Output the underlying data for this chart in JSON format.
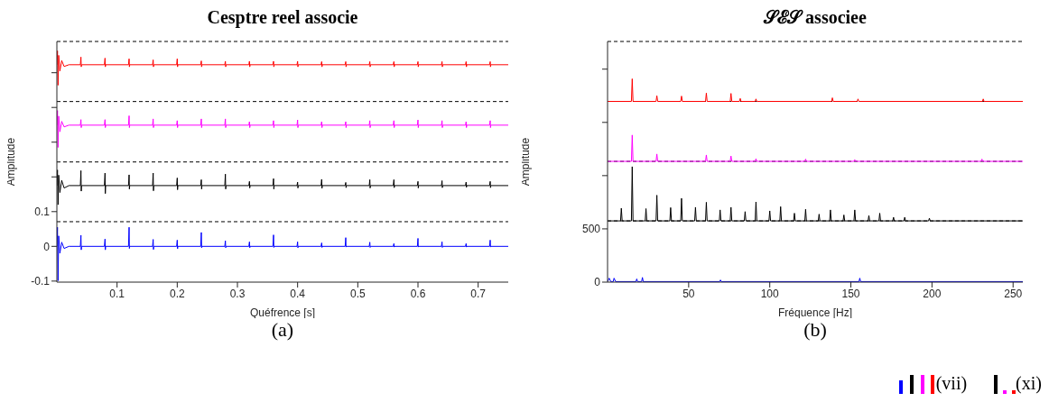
{
  "chart_data": [
    {
      "type": "line",
      "title": "Cesptre reel associe",
      "xlabel": "Quéfrence [s]",
      "ylabel": "Amplitude",
      "annotations": [
        "(a)"
      ],
      "xlim": [
        0,
        0.75
      ],
      "xticks": [
        0.1,
        0.2,
        0.3,
        0.4,
        0.5,
        0.6,
        0.7
      ],
      "ylim": [
        -0.103,
        0.59
      ],
      "yticks": [
        -0.1,
        0,
        0.1,
        {
          "value": 0.2,
          "label": null
        },
        {
          "value": 0.3,
          "label": null
        },
        {
          "value": 0.4,
          "label": null
        },
        {
          "value": 0.5,
          "label": null
        }
      ],
      "ref_lines": [
        {
          "axis": "y",
          "value": 0.071,
          "color": "#000000",
          "line_style": "dashed"
        },
        {
          "axis": "y",
          "value": 0.243,
          "color": "#000000",
          "line_style": "dashed"
        },
        {
          "axis": "y",
          "value": 0.417,
          "color": "#000000",
          "line_style": "dashed"
        },
        {
          "axis": "y",
          "value": 0.59,
          "color": "#000000",
          "line_style": "dashed"
        }
      ],
      "series": [
        {
          "color": "#ff0000",
          "x": [
            0,
            0.001,
            0.002,
            0.003,
            0.005,
            0.008,
            0.012,
            0.02,
            0.039,
            0.04,
            0.0405,
            0.041,
            0.079,
            0.08,
            0.0805,
            0.081,
            0.119,
            0.12,
            0.1205,
            0.121,
            0.159,
            0.16,
            0.1605,
            0.161,
            0.199,
            0.2,
            0.2005,
            0.201,
            0.239,
            0.24,
            0.2405,
            0.241,
            0.279,
            0.28,
            0.2805,
            0.281,
            0.319,
            0.32,
            0.3205,
            0.321,
            0.359,
            0.36,
            0.3605,
            0.361,
            0.399,
            0.4,
            0.4005,
            0.401,
            0.439,
            0.44,
            0.4405,
            0.441,
            0.479,
            0.48,
            0.4805,
            0.481,
            0.519,
            0.52,
            0.5205,
            0.521,
            0.559,
            0.56,
            0.5605,
            0.561,
            0.599,
            0.6,
            0.6005,
            0.601,
            0.639,
            0.64,
            0.6405,
            0.641,
            0.679,
            0.68,
            0.6805,
            0.681,
            0.719,
            0.72,
            0.7205,
            0.721,
            0.75
          ],
          "values": [
            0.523,
            0.563,
            0.464,
            0.55,
            0.505,
            0.535,
            0.518,
            0.523,
            0.523,
            0.545,
            0.517,
            0.523,
            0.523,
            0.542,
            0.517,
            0.523,
            0.523,
            0.54,
            0.517,
            0.523,
            0.523,
            0.537,
            0.517,
            0.523,
            0.523,
            0.54,
            0.517,
            0.523,
            0.523,
            0.534,
            0.517,
            0.523,
            0.523,
            0.533,
            0.517,
            0.523,
            0.523,
            0.533,
            0.517,
            0.523,
            0.523,
            0.533,
            0.517,
            0.523,
            0.523,
            0.533,
            0.517,
            0.523,
            0.523,
            0.532,
            0.517,
            0.523,
            0.523,
            0.532,
            0.517,
            0.523,
            0.523,
            0.532,
            0.517,
            0.523,
            0.523,
            0.532,
            0.517,
            0.523,
            0.523,
            0.532,
            0.517,
            0.523,
            0.523,
            0.532,
            0.517,
            0.523,
            0.523,
            0.532,
            0.517,
            0.523,
            0.523,
            0.532,
            0.517,
            0.523,
            0.523
          ]
        },
        {
          "color": "#ff00ff",
          "x": [
            0,
            0.001,
            0.002,
            0.003,
            0.005,
            0.008,
            0.012,
            0.02,
            0.039,
            0.04,
            0.0405,
            0.041,
            0.079,
            0.08,
            0.0805,
            0.081,
            0.119,
            0.12,
            0.1205,
            0.121,
            0.159,
            0.16,
            0.1605,
            0.161,
            0.199,
            0.2,
            0.2005,
            0.201,
            0.239,
            0.24,
            0.2405,
            0.241,
            0.279,
            0.28,
            0.2805,
            0.281,
            0.319,
            0.32,
            0.3205,
            0.321,
            0.359,
            0.36,
            0.3605,
            0.361,
            0.399,
            0.4,
            0.4005,
            0.401,
            0.439,
            0.44,
            0.4405,
            0.441,
            0.479,
            0.48,
            0.4805,
            0.481,
            0.519,
            0.52,
            0.5205,
            0.521,
            0.559,
            0.56,
            0.5605,
            0.561,
            0.599,
            0.6,
            0.6005,
            0.601,
            0.639,
            0.64,
            0.6405,
            0.641,
            0.679,
            0.68,
            0.6805,
            0.681,
            0.719,
            0.72,
            0.7205,
            0.721,
            0.75
          ],
          "values": [
            0.349,
            0.391,
            0.285,
            0.375,
            0.33,
            0.36,
            0.344,
            0.349,
            0.349,
            0.365,
            0.342,
            0.349,
            0.349,
            0.365,
            0.342,
            0.349,
            0.349,
            0.376,
            0.342,
            0.349,
            0.349,
            0.367,
            0.342,
            0.349,
            0.349,
            0.362,
            0.342,
            0.349,
            0.349,
            0.367,
            0.342,
            0.349,
            0.349,
            0.367,
            0.342,
            0.349,
            0.349,
            0.359,
            0.342,
            0.349,
            0.349,
            0.362,
            0.342,
            0.349,
            0.349,
            0.364,
            0.342,
            0.349,
            0.349,
            0.359,
            0.342,
            0.349,
            0.349,
            0.359,
            0.342,
            0.349,
            0.349,
            0.362,
            0.342,
            0.349,
            0.349,
            0.362,
            0.342,
            0.349,
            0.349,
            0.364,
            0.342,
            0.349,
            0.349,
            0.362,
            0.342,
            0.349,
            0.349,
            0.359,
            0.342,
            0.349,
            0.349,
            0.362,
            0.342,
            0.349,
            0.349
          ]
        },
        {
          "color": "#000000",
          "x": [
            0,
            0.001,
            0.002,
            0.003,
            0.005,
            0.008,
            0.012,
            0.02,
            0.039,
            0.04,
            0.0405,
            0.041,
            0.079,
            0.08,
            0.0805,
            0.081,
            0.119,
            0.12,
            0.1205,
            0.121,
            0.159,
            0.16,
            0.1605,
            0.161,
            0.199,
            0.2,
            0.2005,
            0.201,
            0.239,
            0.24,
            0.2405,
            0.241,
            0.279,
            0.28,
            0.2805,
            0.281,
            0.319,
            0.32,
            0.3205,
            0.321,
            0.359,
            0.36,
            0.3605,
            0.361,
            0.399,
            0.4,
            0.4005,
            0.401,
            0.439,
            0.44,
            0.4405,
            0.441,
            0.479,
            0.48,
            0.4805,
            0.481,
            0.519,
            0.52,
            0.5205,
            0.521,
            0.559,
            0.56,
            0.5605,
            0.561,
            0.599,
            0.6,
            0.6005,
            0.601,
            0.639,
            0.64,
            0.6405,
            0.641,
            0.679,
            0.68,
            0.6805,
            0.681,
            0.719,
            0.72,
            0.7205,
            0.721,
            0.75
          ],
          "values": [
            0.175,
            0.22,
            0.12,
            0.205,
            0.155,
            0.19,
            0.168,
            0.175,
            0.175,
            0.218,
            0.159,
            0.175,
            0.175,
            0.211,
            0.152,
            0.175,
            0.175,
            0.206,
            0.165,
            0.175,
            0.175,
            0.211,
            0.16,
            0.175,
            0.175,
            0.197,
            0.163,
            0.175,
            0.175,
            0.192,
            0.165,
            0.175,
            0.175,
            0.208,
            0.165,
            0.175,
            0.175,
            0.187,
            0.168,
            0.175,
            0.175,
            0.195,
            0.165,
            0.175,
            0.175,
            0.185,
            0.168,
            0.175,
            0.175,
            0.193,
            0.167,
            0.175,
            0.175,
            0.184,
            0.169,
            0.175,
            0.175,
            0.192,
            0.168,
            0.175,
            0.175,
            0.192,
            0.169,
            0.175,
            0.175,
            0.187,
            0.168,
            0.175,
            0.175,
            0.189,
            0.169,
            0.175,
            0.175,
            0.185,
            0.17,
            0.175,
            0.175,
            0.187,
            0.169,
            0.175,
            0.175
          ]
        },
        {
          "color": "#0000ff",
          "x": [
            0,
            0.001,
            0.002,
            0.003,
            0.005,
            0.008,
            0.012,
            0.02,
            0.039,
            0.04,
            0.0405,
            0.041,
            0.079,
            0.08,
            0.0805,
            0.081,
            0.119,
            0.12,
            0.1205,
            0.121,
            0.159,
            0.16,
            0.1605,
            0.161,
            0.199,
            0.2,
            0.2005,
            0.201,
            0.239,
            0.24,
            0.2405,
            0.241,
            0.279,
            0.28,
            0.2805,
            0.281,
            0.319,
            0.32,
            0.3205,
            0.321,
            0.359,
            0.36,
            0.3605,
            0.361,
            0.399,
            0.4,
            0.4005,
            0.401,
            0.439,
            0.44,
            0.4405,
            0.441,
            0.479,
            0.48,
            0.4805,
            0.481,
            0.519,
            0.52,
            0.5205,
            0.521,
            0.559,
            0.56,
            0.5605,
            0.561,
            0.599,
            0.6,
            0.6005,
            0.601,
            0.639,
            0.64,
            0.6405,
            0.641,
            0.679,
            0.68,
            0.6805,
            0.681,
            0.719,
            0.72,
            0.7205,
            0.721,
            0.75
          ],
          "values": [
            0,
            0.055,
            -0.099,
            0.03,
            -0.02,
            0.012,
            -0.006,
            0,
            0,
            0.032,
            -0.01,
            0,
            0,
            0.021,
            -0.01,
            0,
            0,
            0.055,
            -0.006,
            0,
            0,
            0.02,
            -0.009,
            0,
            0,
            0.018,
            -0.007,
            0,
            0,
            0.04,
            -0.004,
            0,
            0,
            0.016,
            -0.004,
            0,
            0,
            0.013,
            -0.004,
            0,
            0,
            0.033,
            -0.003,
            0,
            0,
            0.013,
            -0.004,
            0,
            0,
            0.01,
            -0.003,
            0,
            0,
            0.025,
            -0.002,
            0,
            0,
            0.012,
            -0.003,
            0,
            0,
            0.008,
            -0.002,
            0,
            0,
            0.023,
            -0.002,
            0,
            0,
            0.013,
            -0.003,
            0,
            0,
            0.008,
            -0.002,
            0,
            0,
            0.018,
            -0.002,
            0,
            0
          ]
        }
      ]
    },
    {
      "type": "line",
      "title": "𝒮ℰ𝒮 associee",
      "xlabel": "Fréquence [Hz]",
      "ylabel": "Amplitude",
      "annotations": [
        "(b)",
        "(vii)",
        "(xi)"
      ],
      "xlim": [
        0,
        256
      ],
      "xticks": [
        50,
        100,
        150,
        200,
        250
      ],
      "ylim": [
        0,
        2260
      ],
      "yticks": [
        0,
        500,
        {
          "value": 1000,
          "label": null
        },
        {
          "value": 1500,
          "label": null
        },
        {
          "value": 2000,
          "label": null
        }
      ],
      "ref_lines": [
        {
          "axis": "y",
          "value": 575,
          "color": "#000000",
          "line_style": "dashed"
        },
        {
          "axis": "y",
          "value": 1134,
          "color": "#000000",
          "line_style": "dashed"
        },
        {
          "axis": "y",
          "value": 1697,
          "color": "#000000",
          "line_style": "dashed"
        },
        {
          "axis": "y",
          "value": 2260,
          "color": "#000000",
          "line_style": "dashed"
        }
      ],
      "series": [
        {
          "color": "#ff0000",
          "x": [
            0,
            14.7,
            15.2,
            15.7,
            29.9,
            30.4,
            30.9,
            45.1,
            45.6,
            46.1,
            60.4,
            60.9,
            61.4,
            75.6,
            76.1,
            76.6,
            81.3,
            81.8,
            82.3,
            91,
            91.5,
            92,
            138.1,
            138.6,
            139.1,
            153.9,
            154.4,
            154.9,
            231.1,
            231.6,
            232.1,
            256
          ],
          "values": [
            1697,
            1697,
            1909,
            1697,
            1697,
            1750,
            1697,
            1697,
            1747,
            1697,
            1697,
            1775,
            1697,
            1697,
            1772,
            1697,
            1697,
            1725,
            1697,
            1697,
            1720,
            1697,
            1697,
            1731,
            1697,
            1697,
            1720,
            1697,
            1697,
            1720,
            1697,
            1697
          ]
        },
        {
          "color": "#ff00ff",
          "x": [
            0,
            14.7,
            15.2,
            15.7,
            29.9,
            30.4,
            30.9,
            60.4,
            60.9,
            61.4,
            75.6,
            76.1,
            76.6,
            91,
            91.5,
            92,
            121.6,
            122.1,
            122.6,
            151.9,
            152.4,
            152.9,
            230.3,
            230.8,
            231.3,
            256
          ],
          "values": [
            1134,
            1134,
            1381,
            1134,
            1134,
            1203,
            1134,
            1134,
            1194,
            1134,
            1134,
            1184,
            1134,
            1134,
            1159,
            1134,
            1134,
            1155,
            1134,
            1134,
            1150,
            1134,
            1134,
            1155,
            1134,
            1134
          ]
        },
        {
          "color": "#000000",
          "x": [
            0,
            8,
            8.5,
            9,
            14.7,
            15.2,
            15.7,
            23.2,
            23.7,
            24.2,
            29.9,
            30.4,
            30.9,
            38.4,
            38.9,
            39.4,
            45.1,
            45.6,
            46.1,
            53.7,
            54.2,
            54.7,
            60.4,
            60.9,
            61.4,
            68.9,
            69.4,
            69.9,
            75.6,
            76.1,
            76.6,
            84.3,
            84.8,
            85.3,
            91,
            91.5,
            92,
            99.5,
            100,
            100.5,
            106.2,
            106.7,
            107.2,
            114.7,
            115.2,
            115.7,
            121.6,
            122.1,
            122.6,
            129.9,
            130.4,
            130.9,
            136.9,
            137.4,
            137.9,
            145.2,
            145.7,
            146.2,
            151.9,
            152.4,
            152.9,
            160.6,
            161.1,
            161.6,
            167.3,
            167.8,
            168.3,
            175.8,
            176.3,
            176.8,
            182.7,
            183.2,
            183.7,
            197.9,
            198.4,
            198.9,
            256
          ],
          "values": [
            575,
            575,
            694,
            575,
            575,
            1084,
            575,
            575,
            690,
            575,
            575,
            816,
            575,
            575,
            700,
            575,
            575,
            787,
            575,
            575,
            703,
            575,
            575,
            750,
            575,
            575,
            678,
            575,
            575,
            703,
            575,
            575,
            662,
            575,
            575,
            753,
            575,
            575,
            669,
            575,
            575,
            709,
            575,
            575,
            647,
            575,
            575,
            684,
            575,
            575,
            638,
            575,
            575,
            678,
            575,
            575,
            631,
            575,
            575,
            678,
            575,
            575,
            625,
            575,
            575,
            647,
            575,
            575,
            609,
            575,
            575,
            609,
            575,
            575,
            600,
            575,
            575
          ]
        },
        {
          "color": "#0000ff",
          "x": [
            0,
            1,
            2,
            3.5,
            4,
            5,
            17.5,
            18,
            18.5,
            21,
            21.5,
            22,
            69.1,
            69.6,
            70.1,
            155,
            155.5,
            156,
            256
          ],
          "values": [
            5,
            37,
            5,
            5,
            37,
            5,
            5,
            30,
            5,
            5,
            44,
            5,
            5,
            20,
            5,
            5,
            37,
            5,
            5
          ]
        }
      ]
    }
  ]
}
